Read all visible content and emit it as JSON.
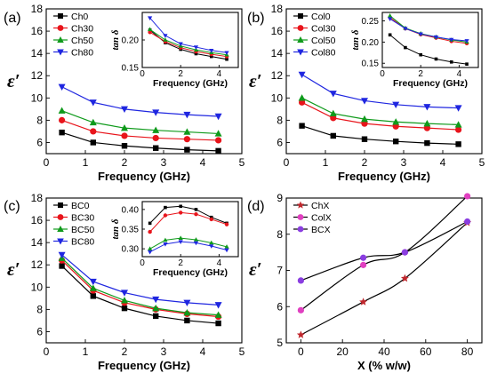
{
  "chart_data": [
    {
      "type": "line",
      "panel_label": "(a)",
      "xlabel": "Frequency (GHz)",
      "ylabel": "ε′",
      "xlim": [
        0,
        5
      ],
      "ylim": [
        5,
        18
      ],
      "xticks": [
        0,
        1,
        2,
        3,
        4,
        5
      ],
      "yticks": [
        6,
        8,
        10,
        12,
        14,
        16,
        18
      ],
      "legend_position": "top-left",
      "x": [
        0.4,
        1.2,
        2.0,
        2.8,
        3.6,
        4.4
      ],
      "series": [
        {
          "name": "Ch0",
          "color": "#000000",
          "marker": "square",
          "values": [
            6.9,
            6.0,
            5.7,
            5.5,
            5.35,
            5.25
          ]
        },
        {
          "name": "Ch30",
          "color": "#e8141b",
          "marker": "circle",
          "values": [
            8.0,
            7.0,
            6.6,
            6.4,
            6.3,
            6.2
          ]
        },
        {
          "name": "Ch50",
          "color": "#0f9a1b",
          "marker": "triangle-up",
          "values": [
            8.85,
            7.8,
            7.3,
            7.1,
            6.95,
            6.8
          ]
        },
        {
          "name": "Ch80",
          "color": "#1f26e0",
          "marker": "triangle-down",
          "values": [
            11.0,
            9.6,
            9.0,
            8.7,
            8.5,
            8.35
          ]
        }
      ],
      "inset": {
        "xlabel": "Frequency (GHz)",
        "ylabel": "tan δ",
        "xlim": [
          0,
          5
        ],
        "ylim": [
          0.15,
          0.25
        ],
        "xticks": [
          0,
          2,
          4
        ],
        "yticks": [
          0.15,
          0.2
        ],
        "x": [
          0.4,
          1.2,
          2.0,
          2.8,
          3.6,
          4.4
        ],
        "series": [
          {
            "name": "Ch0",
            "values": [
              0.218,
              0.195,
              0.183,
              0.175,
              0.17,
              0.165
            ]
          },
          {
            "name": "Ch30",
            "values": [
              0.214,
              0.197,
              0.186,
              0.179,
              0.174,
              0.17
            ]
          },
          {
            "name": "Ch50",
            "values": [
              0.219,
              0.2,
              0.189,
              0.182,
              0.177,
              0.173
            ]
          },
          {
            "name": "Ch80",
            "values": [
              0.24,
              0.208,
              0.193,
              0.187,
              0.181,
              0.177
            ]
          }
        ]
      }
    },
    {
      "type": "line",
      "panel_label": "(b)",
      "xlabel": "Frequency (GHz)",
      "ylabel": "ε′",
      "xlim": [
        0,
        5
      ],
      "ylim": [
        5,
        18
      ],
      "xticks": [
        0,
        1,
        2,
        3,
        4,
        5
      ],
      "yticks": [
        6,
        8,
        10,
        12,
        14,
        16,
        18
      ],
      "legend_position": "top-left",
      "x": [
        0.4,
        1.2,
        2.0,
        2.8,
        3.6,
        4.4
      ],
      "series": [
        {
          "name": "Col0",
          "color": "#000000",
          "marker": "square",
          "values": [
            7.5,
            6.6,
            6.3,
            6.1,
            5.95,
            5.85
          ]
        },
        {
          "name": "Col30",
          "color": "#e8141b",
          "marker": "circle",
          "values": [
            9.6,
            8.2,
            7.7,
            7.45,
            7.3,
            7.15
          ]
        },
        {
          "name": "Col50",
          "color": "#0f9a1b",
          "marker": "triangle-up",
          "values": [
            10.0,
            8.6,
            8.1,
            7.85,
            7.7,
            7.6
          ]
        },
        {
          "name": "Col80",
          "color": "#1f26e0",
          "marker": "triangle-down",
          "values": [
            12.1,
            10.4,
            9.75,
            9.4,
            9.2,
            9.1
          ]
        }
      ],
      "inset": {
        "xlabel": "Frequency (GHz)",
        "ylabel": "tan δ",
        "xlim": [
          0,
          5
        ],
        "ylim": [
          0.14,
          0.27
        ],
        "xticks": [
          0,
          2,
          4
        ],
        "yticks": [
          0.15,
          0.2,
          0.25
        ],
        "x": [
          0.4,
          1.2,
          2.0,
          2.8,
          3.6,
          4.4
        ],
        "series": [
          {
            "name": "Col0",
            "values": [
              0.217,
              0.187,
              0.17,
              0.16,
              0.153,
              0.148
            ]
          },
          {
            "name": "Col30",
            "values": [
              0.258,
              0.232,
              0.218,
              0.21,
              0.202,
              0.197
            ]
          },
          {
            "name": "Col50",
            "values": [
              0.262,
              0.233,
              0.22,
              0.212,
              0.205,
              0.2
            ]
          },
          {
            "name": "Col80",
            "values": [
              0.255,
              0.232,
              0.219,
              0.212,
              0.206,
              0.203
            ]
          }
        ]
      }
    },
    {
      "type": "line",
      "panel_label": "(c)",
      "xlabel": "Frequency (GHz)",
      "ylabel": "ε′",
      "xlim": [
        0,
        5
      ],
      "ylim": [
        5,
        18
      ],
      "xticks": [
        0,
        1,
        2,
        3,
        4,
        5
      ],
      "yticks": [
        6,
        8,
        10,
        12,
        14,
        16,
        18
      ],
      "legend_position": "top-left",
      "x": [
        0.4,
        1.2,
        2.0,
        2.8,
        3.6,
        4.4
      ],
      "series": [
        {
          "name": "BC0",
          "color": "#000000",
          "marker": "square",
          "values": [
            11.9,
            9.2,
            8.1,
            7.4,
            7.0,
            6.75
          ]
        },
        {
          "name": "BC30",
          "color": "#e8141b",
          "marker": "circle",
          "values": [
            12.4,
            9.7,
            8.6,
            8.0,
            7.6,
            7.35
          ]
        },
        {
          "name": "BC50",
          "color": "#0f9a1b",
          "marker": "triangle-up",
          "values": [
            12.6,
            9.9,
            8.8,
            8.1,
            7.7,
            7.5
          ]
        },
        {
          "name": "BC80",
          "color": "#1f26e0",
          "marker": "triangle-down",
          "values": [
            12.9,
            10.5,
            9.5,
            8.9,
            8.6,
            8.4
          ]
        }
      ],
      "inset": {
        "xlabel": "Frequency (GHz)",
        "ylabel": "tan δ",
        "xlim": [
          0,
          5
        ],
        "ylim": [
          0.28,
          0.42
        ],
        "xticks": [
          0,
          2,
          4
        ],
        "yticks": [
          0.3,
          0.35,
          0.4
        ],
        "x": [
          0.4,
          1.2,
          2.0,
          2.8,
          3.6,
          4.4
        ],
        "series": [
          {
            "name": "BC0",
            "values": [
              0.365,
              0.405,
              0.408,
              0.4,
              0.38,
              0.365
            ]
          },
          {
            "name": "BC30",
            "values": [
              0.343,
              0.385,
              0.392,
              0.388,
              0.375,
              0.362
            ]
          },
          {
            "name": "BC50",
            "values": [
              0.3,
              0.322,
              0.327,
              0.323,
              0.315,
              0.305
            ]
          },
          {
            "name": "BC80",
            "values": [
              0.292,
              0.312,
              0.318,
              0.315,
              0.307,
              0.297
            ]
          }
        ]
      }
    },
    {
      "type": "line",
      "panel_label": "(d)",
      "xlabel": "X (% w/w)",
      "ylabel": "ε′",
      "xlim": [
        -7,
        87
      ],
      "ylim": [
        5,
        9
      ],
      "xticks": [
        0,
        20,
        40,
        60,
        80
      ],
      "yticks": [
        5,
        6,
        7,
        8,
        9
      ],
      "legend_position": "top-left",
      "x": [
        0,
        30,
        50,
        80
      ],
      "series": [
        {
          "name": "ChX",
          "color": "#c0272d",
          "marker": "star",
          "values": [
            5.22,
            6.13,
            6.78,
            8.32
          ]
        },
        {
          "name": "ColX",
          "color": "#e040c0",
          "marker": "circle",
          "values": [
            5.9,
            7.15,
            7.5,
            9.05
          ]
        },
        {
          "name": "BCX",
          "color": "#8a3ee0",
          "marker": "circle",
          "values": [
            6.72,
            7.35,
            7.5,
            8.35
          ]
        }
      ]
    }
  ]
}
